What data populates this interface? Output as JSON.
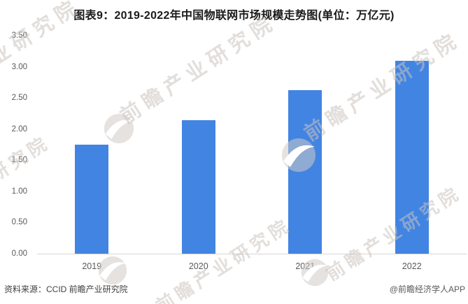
{
  "title": "图表9：2019-2022年中国物联网市场规模走势图(单位：万亿元)",
  "chart_data": {
    "type": "bar",
    "title": "图表9：2019-2022年中国物联网市场规模走势图(单位：万亿元)",
    "unit": "万亿元",
    "categories": [
      "2019",
      "2020",
      "2021",
      "2022"
    ],
    "values": [
      1.75,
      2.14,
      2.63,
      3.1
    ],
    "ylim": [
      0,
      3.5
    ],
    "ytick_step": 0.5,
    "ytick_labels": [
      "0.00",
      "0.50",
      "1.00",
      "1.50",
      "2.00",
      "2.50",
      "3.00",
      "3.50"
    ],
    "grid": false,
    "legend": "none",
    "xlabel": "",
    "ylabel": ""
  },
  "colors": {
    "bar": "#4284E2",
    "axis_line": "#D6D6D6",
    "tick_text": "#595959",
    "title_text": "#1A1A1A",
    "footer_text": "#3F3F3F",
    "watermark": "#CBC3BD"
  },
  "footer": {
    "source": "资料来源：CCID 前瞻产业研究院",
    "credit": "@前瞻经济学人APP"
  },
  "watermark": {
    "text": "前瞻产业研究院",
    "logo": "qianzhan-logo"
  }
}
